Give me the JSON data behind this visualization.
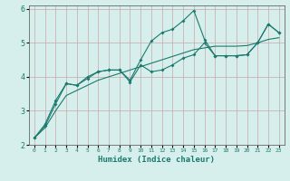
{
  "xlabel": "Humidex (Indice chaleur)",
  "bg_color": "#d7efec",
  "line_color": "#1a7a6e",
  "grid_color": "#c8a8a8",
  "xlim": [
    -0.5,
    23.5
  ],
  "ylim": [
    2,
    6.1
  ],
  "xticks": [
    0,
    1,
    2,
    3,
    4,
    5,
    6,
    7,
    8,
    9,
    10,
    11,
    12,
    13,
    14,
    15,
    16,
    17,
    18,
    19,
    20,
    21,
    22,
    23
  ],
  "yticks": [
    2,
    3,
    4,
    5,
    6
  ],
  "line1_x": [
    0,
    1,
    2,
    3,
    4,
    5,
    6,
    7,
    8,
    9,
    10,
    11,
    12,
    13,
    14,
    15,
    16,
    17,
    18,
    19,
    20,
    21,
    22,
    23
  ],
  "line1_y": [
    2.2,
    2.6,
    3.3,
    3.8,
    3.75,
    3.95,
    4.15,
    4.2,
    4.2,
    3.9,
    4.5,
    5.05,
    5.3,
    5.4,
    5.65,
    5.95,
    5.1,
    4.62,
    4.62,
    4.62,
    4.65,
    5.0,
    5.55,
    5.3
  ],
  "line2_x": [
    0,
    1,
    2,
    3,
    4,
    5,
    6,
    7,
    8,
    9,
    10,
    11,
    12,
    13,
    14,
    15,
    16,
    17,
    18,
    19,
    20,
    21,
    22,
    23
  ],
  "line2_y": [
    2.2,
    2.55,
    3.2,
    3.8,
    3.75,
    4.0,
    4.15,
    4.2,
    4.2,
    3.85,
    4.35,
    4.15,
    4.2,
    4.35,
    4.55,
    4.65,
    5.0,
    4.62,
    4.62,
    4.62,
    4.65,
    5.0,
    5.55,
    5.3
  ],
  "line3_x": [
    0,
    1,
    2,
    3,
    4,
    5,
    6,
    7,
    8,
    9,
    10,
    11,
    12,
    13,
    14,
    15,
    16,
    17,
    18,
    19,
    20,
    21,
    22,
    23
  ],
  "line3_y": [
    2.2,
    2.5,
    3.0,
    3.45,
    3.6,
    3.75,
    3.9,
    4.0,
    4.1,
    4.2,
    4.3,
    4.4,
    4.5,
    4.6,
    4.7,
    4.8,
    4.85,
    4.9,
    4.9,
    4.9,
    4.92,
    5.0,
    5.1,
    5.15
  ]
}
